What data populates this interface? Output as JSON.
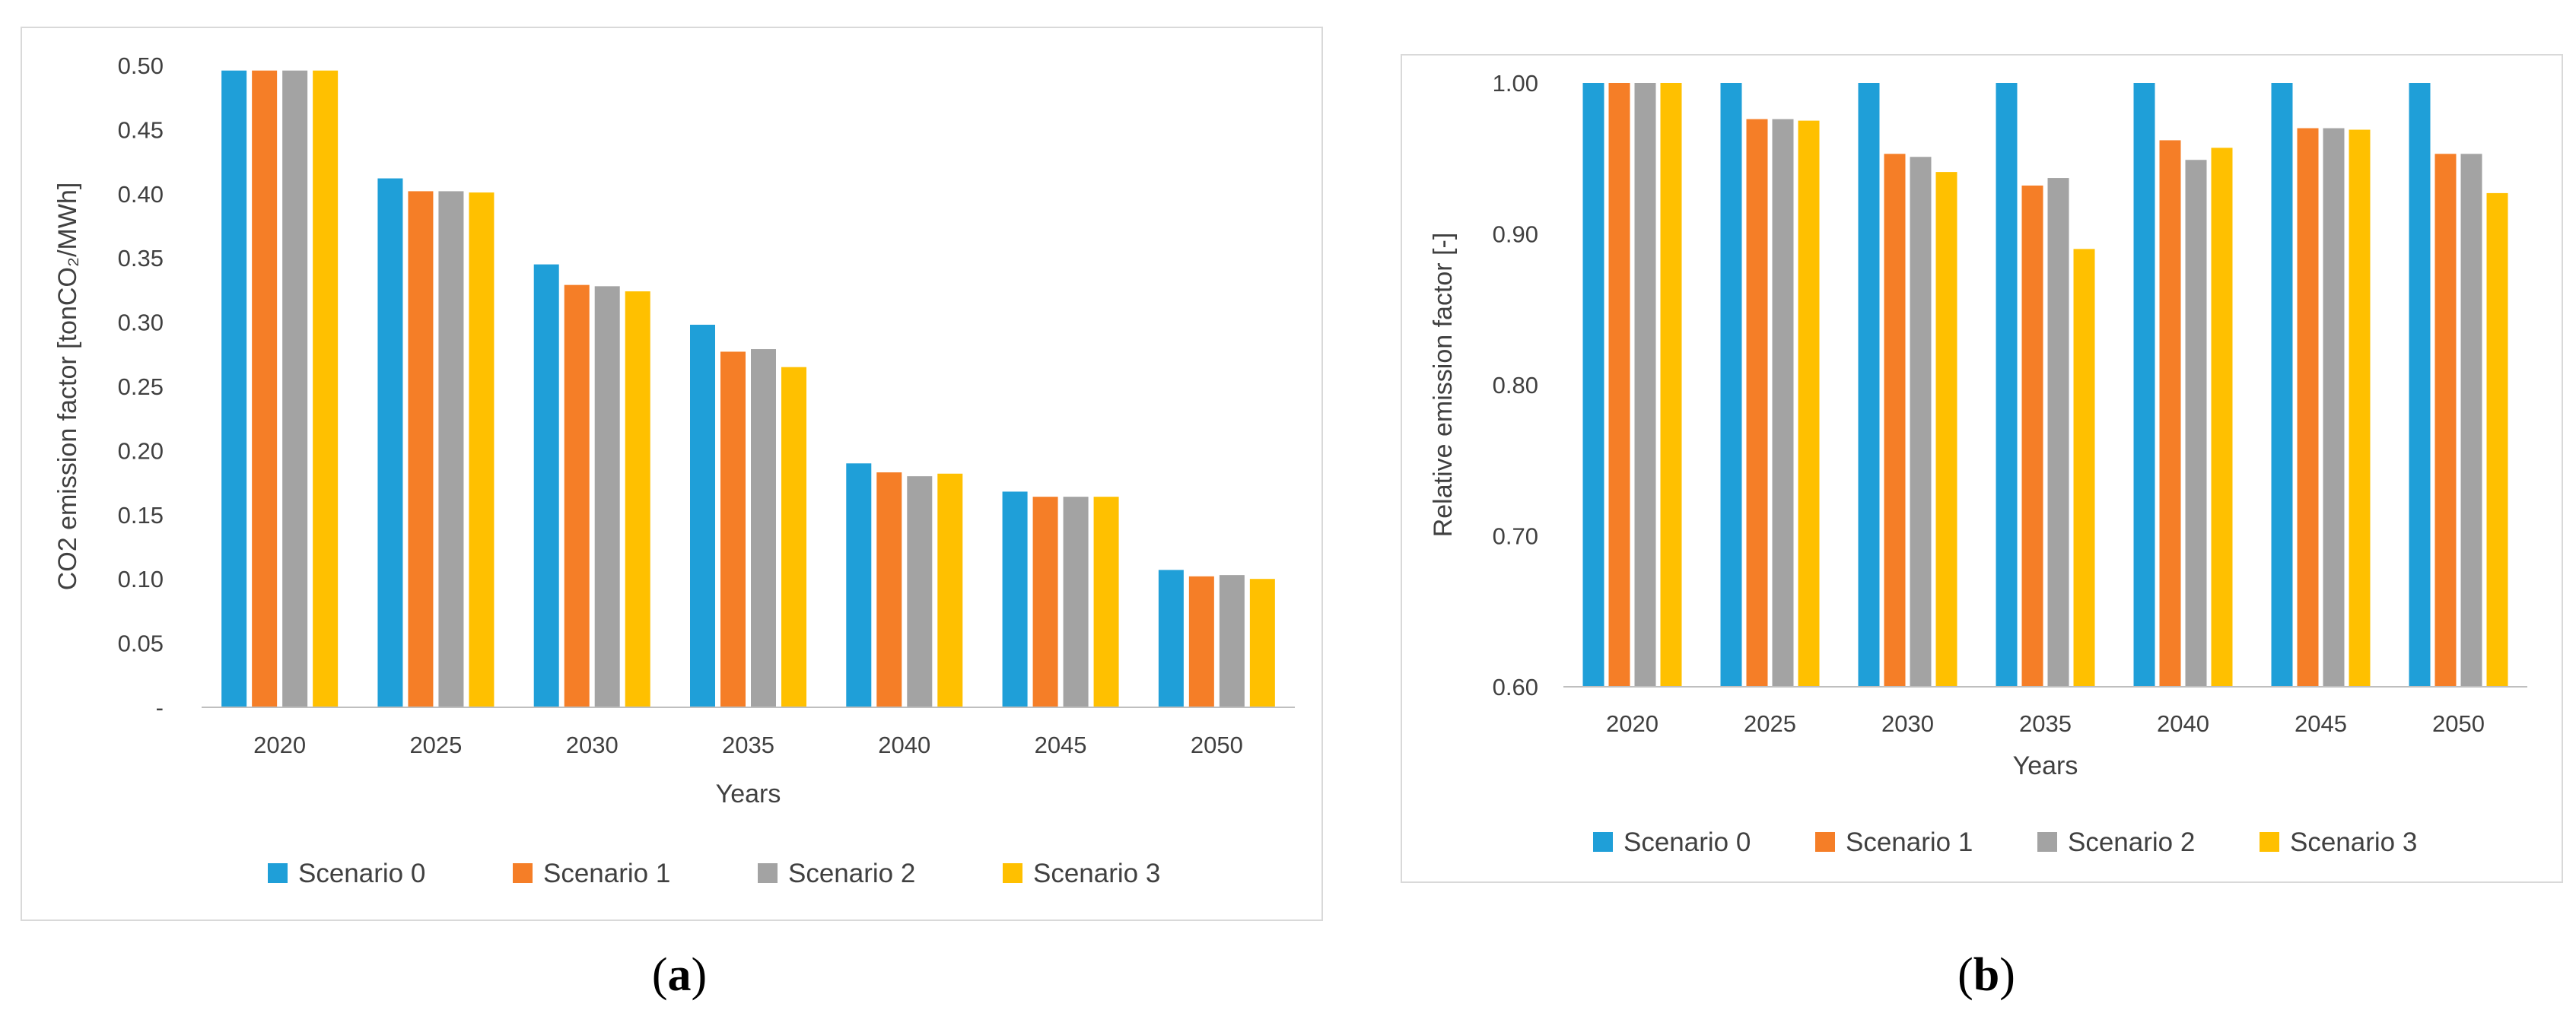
{
  "colors": {
    "scenario_0": "#1f9fd8",
    "scenario_1": "#f57e27",
    "scenario_2": "#a3a3a3",
    "scenario_3": "#ffc000",
    "axis": "#bfbfbf",
    "frame": "#d9d9d9"
  },
  "captions": {
    "a": {
      "open": "(",
      "letter": "a",
      "close": ")"
    },
    "b": {
      "open": "(",
      "letter": "b",
      "close": ")"
    }
  },
  "chart_data": [
    {
      "id": "a",
      "type": "bar",
      "title": "",
      "xlabel": "Years",
      "ylabel": "CO2 emission factor [tonCO₂/MWh]",
      "ylim": [
        0,
        0.5
      ],
      "yticks": [
        0,
        0.05,
        0.1,
        0.15,
        0.2,
        0.25,
        0.3,
        0.35,
        0.4,
        0.45,
        0.5
      ],
      "ytick_labels": [
        "-",
        "0.05",
        "0.10",
        "0.15",
        "0.20",
        "0.25",
        "0.30",
        "0.35",
        "0.40",
        "0.45",
        "0.50"
      ],
      "grid": false,
      "legend_position": "bottom",
      "categories": [
        "2020",
        "2025",
        "2030",
        "2035",
        "2040",
        "2045",
        "2050"
      ],
      "series": [
        {
          "name": "Scenario 0",
          "values": [
            0.496,
            0.412,
            0.345,
            0.298,
            0.19,
            0.168,
            0.107
          ]
        },
        {
          "name": "Scenario 1",
          "values": [
            0.496,
            0.402,
            0.329,
            0.277,
            0.183,
            0.164,
            0.102
          ]
        },
        {
          "name": "Scenario 2",
          "values": [
            0.496,
            0.402,
            0.328,
            0.279,
            0.18,
            0.164,
            0.103
          ]
        },
        {
          "name": "Scenario 3",
          "values": [
            0.496,
            0.401,
            0.324,
            0.265,
            0.182,
            0.164,
            0.1
          ]
        }
      ]
    },
    {
      "id": "b",
      "type": "bar",
      "title": "",
      "xlabel": "Years",
      "ylabel": "Relative emission factor [-]",
      "ylim": [
        0.6,
        1.0
      ],
      "yticks": [
        0.6,
        0.7,
        0.8,
        0.9,
        1.0
      ],
      "ytick_labels": [
        "0.60",
        "0.70",
        "0.80",
        "0.90",
        "1.00"
      ],
      "grid": false,
      "legend_position": "bottom",
      "categories": [
        "2020",
        "2025",
        "2030",
        "2035",
        "2040",
        "2045",
        "2050"
      ],
      "series": [
        {
          "name": "Scenario 0",
          "values": [
            1.0,
            1.0,
            1.0,
            1.0,
            1.0,
            1.0,
            1.0
          ]
        },
        {
          "name": "Scenario 1",
          "values": [
            1.0,
            0.976,
            0.953,
            0.932,
            0.962,
            0.97,
            0.953
          ]
        },
        {
          "name": "Scenario 2",
          "values": [
            1.0,
            0.976,
            0.951,
            0.937,
            0.949,
            0.97,
            0.953
          ]
        },
        {
          "name": "Scenario 3",
          "values": [
            1.0,
            0.975,
            0.941,
            0.89,
            0.957,
            0.969,
            0.927
          ]
        }
      ]
    }
  ]
}
